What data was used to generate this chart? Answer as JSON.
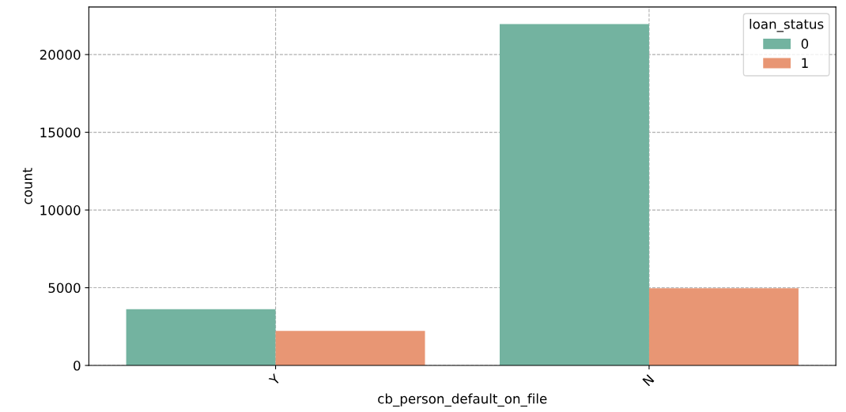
{
  "chart_data": {
    "type": "bar",
    "xlabel": "cb_person_default_on_file",
    "ylabel": "count",
    "legend_title": "loan_status",
    "categories": [
      "Y",
      "N"
    ],
    "series": [
      {
        "name": "0",
        "color": "#73b3a0",
        "values": [
          3620,
          21960
        ]
      },
      {
        "name": "1",
        "color": "#e89674",
        "values": [
          2220,
          4970
        ]
      }
    ],
    "ylim": [
      0,
      23060
    ],
    "yticks": [
      0,
      5000,
      10000,
      15000,
      20000
    ],
    "grid": true,
    "line_style": "dashed",
    "legend": "top right"
  }
}
